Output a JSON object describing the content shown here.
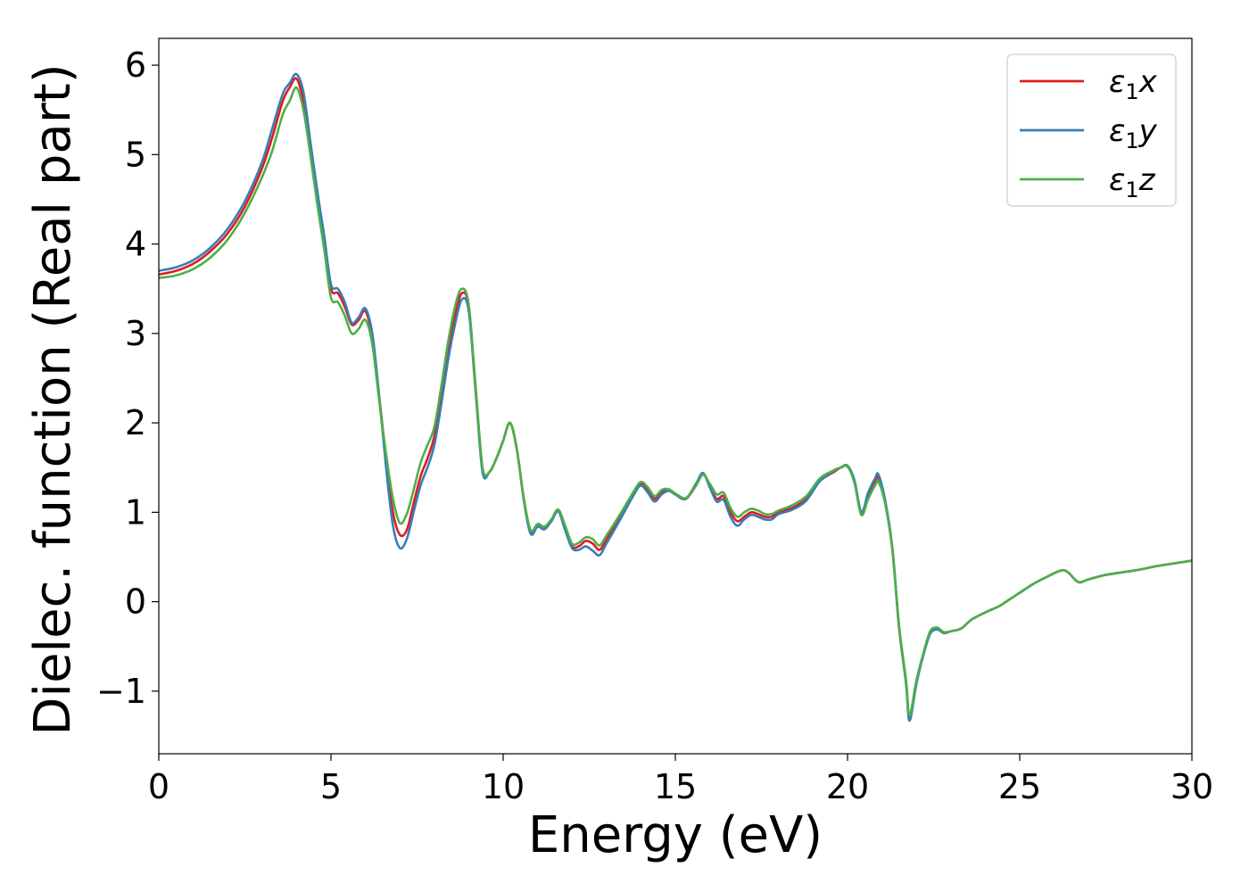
{
  "chart_data": {
    "type": "line",
    "title": "",
    "xlabel": "Energy (eV)",
    "ylabel": "Dielec. function (Real part)",
    "xlim": [
      0,
      30
    ],
    "ylim": [
      -1.7,
      6.3
    ],
    "xticks": [
      0,
      5,
      10,
      15,
      20,
      25,
      30
    ],
    "xtick_labels": [
      "0",
      "5",
      "10",
      "15",
      "20",
      "25",
      "30"
    ],
    "yticks": [
      -1,
      0,
      1,
      2,
      3,
      4,
      5,
      6
    ],
    "ytick_labels": [
      "−1",
      "0",
      "1",
      "2",
      "3",
      "4",
      "5",
      "6"
    ],
    "grid": false,
    "legend_position": "top-right",
    "series": [
      {
        "name": "ε₁x",
        "symbol": "ε",
        "subscript": "1",
        "suffix": "x",
        "color": "#e41a1c",
        "x": [
          0,
          0.5,
          1.0,
          1.5,
          2.0,
          2.5,
          3.0,
          3.3,
          3.6,
          3.8,
          4.0,
          4.2,
          4.4,
          4.6,
          4.8,
          5.0,
          5.2,
          5.4,
          5.6,
          5.8,
          6.0,
          6.2,
          6.4,
          6.6,
          6.8,
          7.0,
          7.2,
          7.4,
          7.6,
          7.8,
          8.0,
          8.2,
          8.4,
          8.6,
          8.8,
          9.0,
          9.2,
          9.4,
          9.6,
          9.8,
          10.0,
          10.2,
          10.4,
          10.6,
          10.8,
          11.0,
          11.2,
          11.4,
          11.6,
          11.8,
          12.0,
          12.2,
          12.4,
          12.6,
          12.8,
          13.0,
          13.4,
          13.8,
          14.0,
          14.2,
          14.4,
          14.6,
          14.8,
          15.0,
          15.3,
          15.6,
          15.8,
          16.0,
          16.2,
          16.4,
          16.6,
          16.8,
          17.0,
          17.2,
          17.4,
          17.6,
          17.8,
          18.0,
          18.4,
          18.8,
          19.2,
          19.6,
          19.8,
          20.0,
          20.2,
          20.4,
          20.6,
          20.8,
          20.9,
          21.1,
          21.3,
          21.5,
          21.7,
          21.8,
          22.0,
          22.2,
          22.4,
          22.6,
          22.8,
          23.0,
          23.3,
          23.6,
          24.0,
          24.4,
          24.6,
          25.0,
          25.4,
          25.8,
          26.2,
          26.4,
          26.7,
          27.0,
          27.5,
          28.0,
          28.5,
          29.0,
          29.5,
          30.0
        ],
        "y": [
          3.66,
          3.7,
          3.78,
          3.92,
          4.12,
          4.42,
          4.85,
          5.2,
          5.6,
          5.75,
          5.85,
          5.6,
          5.1,
          4.55,
          4.05,
          3.5,
          3.45,
          3.3,
          3.1,
          3.15,
          3.25,
          2.95,
          2.3,
          1.6,
          1.0,
          0.75,
          0.8,
          1.1,
          1.4,
          1.6,
          1.85,
          2.3,
          2.8,
          3.2,
          3.45,
          3.3,
          2.4,
          1.5,
          1.45,
          1.6,
          1.8,
          2.0,
          1.7,
          1.15,
          0.78,
          0.85,
          0.82,
          0.9,
          1.02,
          0.82,
          0.62,
          0.62,
          0.68,
          0.65,
          0.58,
          0.7,
          0.95,
          1.22,
          1.32,
          1.25,
          1.15,
          1.22,
          1.25,
          1.2,
          1.15,
          1.3,
          1.43,
          1.3,
          1.15,
          1.18,
          1.0,
          0.9,
          0.95,
          1.0,
          0.98,
          0.95,
          0.95,
          1.0,
          1.05,
          1.15,
          1.35,
          1.45,
          1.5,
          1.52,
          1.35,
          1.0,
          1.2,
          1.35,
          1.38,
          1.1,
          0.6,
          -0.3,
          -0.9,
          -1.3,
          -0.9,
          -0.6,
          -0.35,
          -0.3,
          -0.35,
          -0.33,
          -0.3,
          -0.2,
          -0.12,
          -0.05,
          0.0,
          0.1,
          0.2,
          0.28,
          0.35,
          0.33,
          0.22,
          0.25,
          0.3,
          0.33,
          0.36,
          0.4,
          0.43,
          0.46
        ]
      },
      {
        "name": "ε₁y",
        "symbol": "ε",
        "subscript": "1",
        "suffix": "y",
        "color": "#377eb8",
        "x": [
          0,
          0.5,
          1.0,
          1.5,
          2.0,
          2.5,
          3.0,
          3.3,
          3.6,
          3.8,
          4.0,
          4.2,
          4.4,
          4.6,
          4.8,
          5.0,
          5.2,
          5.4,
          5.6,
          5.8,
          6.0,
          6.2,
          6.4,
          6.6,
          6.8,
          7.0,
          7.2,
          7.4,
          7.6,
          7.8,
          8.0,
          8.2,
          8.4,
          8.6,
          8.8,
          9.0,
          9.2,
          9.4,
          9.6,
          9.8,
          10.0,
          10.2,
          10.4,
          10.6,
          10.8,
          11.0,
          11.2,
          11.4,
          11.6,
          11.8,
          12.0,
          12.2,
          12.4,
          12.6,
          12.8,
          13.0,
          13.4,
          13.8,
          14.0,
          14.2,
          14.4,
          14.6,
          14.8,
          15.0,
          15.3,
          15.6,
          15.8,
          16.0,
          16.2,
          16.4,
          16.6,
          16.8,
          17.0,
          17.2,
          17.4,
          17.6,
          17.8,
          18.0,
          18.4,
          18.8,
          19.2,
          19.6,
          19.8,
          20.0,
          20.2,
          20.4,
          20.6,
          20.8,
          20.9,
          21.1,
          21.3,
          21.5,
          21.7,
          21.8,
          22.0,
          22.2,
          22.4,
          22.6,
          22.8,
          23.0,
          23.3,
          23.6,
          24.0,
          24.4,
          24.6,
          25.0,
          25.4,
          25.8,
          26.2,
          26.4,
          26.7,
          27.0,
          27.5,
          28.0,
          28.5,
          29.0,
          29.5,
          30.0
        ],
        "y": [
          3.7,
          3.74,
          3.82,
          3.96,
          4.17,
          4.48,
          4.92,
          5.3,
          5.68,
          5.8,
          5.9,
          5.7,
          5.15,
          4.6,
          4.1,
          3.55,
          3.5,
          3.35,
          3.12,
          3.18,
          3.28,
          3.0,
          2.3,
          1.5,
          0.85,
          0.6,
          0.7,
          1.0,
          1.3,
          1.5,
          1.75,
          2.2,
          2.7,
          3.1,
          3.38,
          3.25,
          2.35,
          1.45,
          1.45,
          1.6,
          1.8,
          2.0,
          1.7,
          1.13,
          0.76,
          0.84,
          0.81,
          0.9,
          1.01,
          0.8,
          0.6,
          0.58,
          0.62,
          0.57,
          0.52,
          0.65,
          0.92,
          1.2,
          1.3,
          1.22,
          1.12,
          1.2,
          1.24,
          1.2,
          1.15,
          1.32,
          1.44,
          1.28,
          1.12,
          1.14,
          0.95,
          0.85,
          0.92,
          0.97,
          0.95,
          0.92,
          0.92,
          0.98,
          1.03,
          1.13,
          1.35,
          1.46,
          1.5,
          1.52,
          1.36,
          1.0,
          1.22,
          1.38,
          1.42,
          1.12,
          0.6,
          -0.3,
          -0.92,
          -1.33,
          -0.92,
          -0.6,
          -0.36,
          -0.31,
          -0.35,
          -0.33,
          -0.3,
          -0.2,
          -0.12,
          -0.05,
          0.0,
          0.1,
          0.2,
          0.28,
          0.35,
          0.33,
          0.22,
          0.25,
          0.3,
          0.33,
          0.36,
          0.4,
          0.43,
          0.46
        ]
      },
      {
        "name": "ε₁z",
        "symbol": "ε",
        "subscript": "1",
        "suffix": "z",
        "color": "#4daf4a",
        "x": [
          0,
          0.5,
          1.0,
          1.5,
          2.0,
          2.5,
          3.0,
          3.3,
          3.6,
          3.8,
          4.0,
          4.2,
          4.4,
          4.6,
          4.8,
          5.0,
          5.2,
          5.4,
          5.6,
          5.8,
          6.0,
          6.2,
          6.4,
          6.6,
          6.8,
          7.0,
          7.2,
          7.4,
          7.6,
          7.8,
          8.0,
          8.2,
          8.4,
          8.6,
          8.8,
          9.0,
          9.2,
          9.4,
          9.6,
          9.8,
          10.0,
          10.2,
          10.4,
          10.6,
          10.8,
          11.0,
          11.2,
          11.4,
          11.6,
          11.8,
          12.0,
          12.2,
          12.4,
          12.6,
          12.8,
          13.0,
          13.4,
          13.8,
          14.0,
          14.2,
          14.4,
          14.6,
          14.8,
          15.0,
          15.3,
          15.6,
          15.8,
          16.0,
          16.2,
          16.4,
          16.6,
          16.8,
          17.0,
          17.2,
          17.4,
          17.6,
          17.8,
          18.0,
          18.4,
          18.8,
          19.2,
          19.6,
          19.8,
          20.0,
          20.2,
          20.4,
          20.6,
          20.8,
          20.9,
          21.1,
          21.3,
          21.5,
          21.7,
          21.8,
          22.0,
          22.2,
          22.4,
          22.6,
          22.8,
          23.0,
          23.3,
          23.6,
          24.0,
          24.4,
          24.6,
          25.0,
          25.4,
          25.8,
          26.2,
          26.4,
          26.7,
          27.0,
          27.5,
          28.0,
          28.5,
          29.0,
          29.5,
          30.0
        ],
        "y": [
          3.62,
          3.65,
          3.72,
          3.85,
          4.05,
          4.35,
          4.75,
          5.05,
          5.45,
          5.6,
          5.75,
          5.5,
          5.0,
          4.45,
          3.95,
          3.4,
          3.35,
          3.2,
          3.0,
          3.05,
          3.15,
          2.88,
          2.25,
          1.65,
          1.15,
          0.88,
          0.98,
          1.25,
          1.55,
          1.75,
          1.95,
          2.4,
          2.9,
          3.3,
          3.5,
          3.32,
          2.4,
          1.5,
          1.45,
          1.6,
          1.8,
          2.0,
          1.7,
          1.15,
          0.8,
          0.87,
          0.84,
          0.92,
          1.03,
          0.85,
          0.65,
          0.66,
          0.72,
          0.7,
          0.63,
          0.74,
          0.98,
          1.24,
          1.34,
          1.28,
          1.18,
          1.25,
          1.26,
          1.21,
          1.16,
          1.3,
          1.42,
          1.32,
          1.2,
          1.22,
          1.05,
          0.95,
          1.0,
          1.04,
          1.02,
          0.98,
          0.98,
          1.02,
          1.08,
          1.18,
          1.38,
          1.47,
          1.5,
          1.51,
          1.33,
          0.97,
          1.15,
          1.3,
          1.34,
          1.08,
          0.58,
          -0.28,
          -0.88,
          -1.27,
          -0.88,
          -0.58,
          -0.33,
          -0.29,
          -0.34,
          -0.33,
          -0.3,
          -0.2,
          -0.12,
          -0.05,
          0.0,
          0.1,
          0.2,
          0.28,
          0.35,
          0.33,
          0.22,
          0.25,
          0.3,
          0.33,
          0.36,
          0.4,
          0.43,
          0.46
        ]
      }
    ]
  }
}
